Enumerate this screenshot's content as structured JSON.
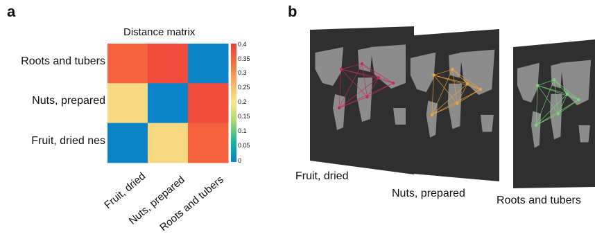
{
  "panel_a_label": "a",
  "panel_b_label": "b",
  "chart_data": {
    "type": "heatmap",
    "title": "Distance matrix",
    "rows": [
      "Roots and tubers",
      "Nuts, prepared",
      "Fruit, dried nes"
    ],
    "columns": [
      "Fruit, dried",
      "Nuts, prepared",
      "Roots and tubers"
    ],
    "values": [
      [
        0.35,
        0.38,
        0.0
      ],
      [
        0.22,
        0.0,
        0.38
      ],
      [
        0.0,
        0.22,
        0.35
      ]
    ],
    "colorbar": {
      "range": [
        0,
        0.4
      ],
      "ticks": [
        "0.4",
        "0.35",
        "0.3",
        "0.25",
        "0.2",
        "0.15",
        "0.1",
        "0.05",
        "0"
      ],
      "colors": [
        "#0a83c8",
        "#13b39b",
        "#9fd96d",
        "#f6ea8c",
        "#f9b26a",
        "#f5703e",
        "#ef3b3b"
      ]
    }
  },
  "maps": [
    {
      "caption": "Fruit, dried",
      "edge_color": "#c8285a"
    },
    {
      "caption": "Nuts, prepared",
      "edge_color": "#f0a23a"
    },
    {
      "caption": "Roots and tubers",
      "edge_color": "#7bd47a"
    }
  ]
}
